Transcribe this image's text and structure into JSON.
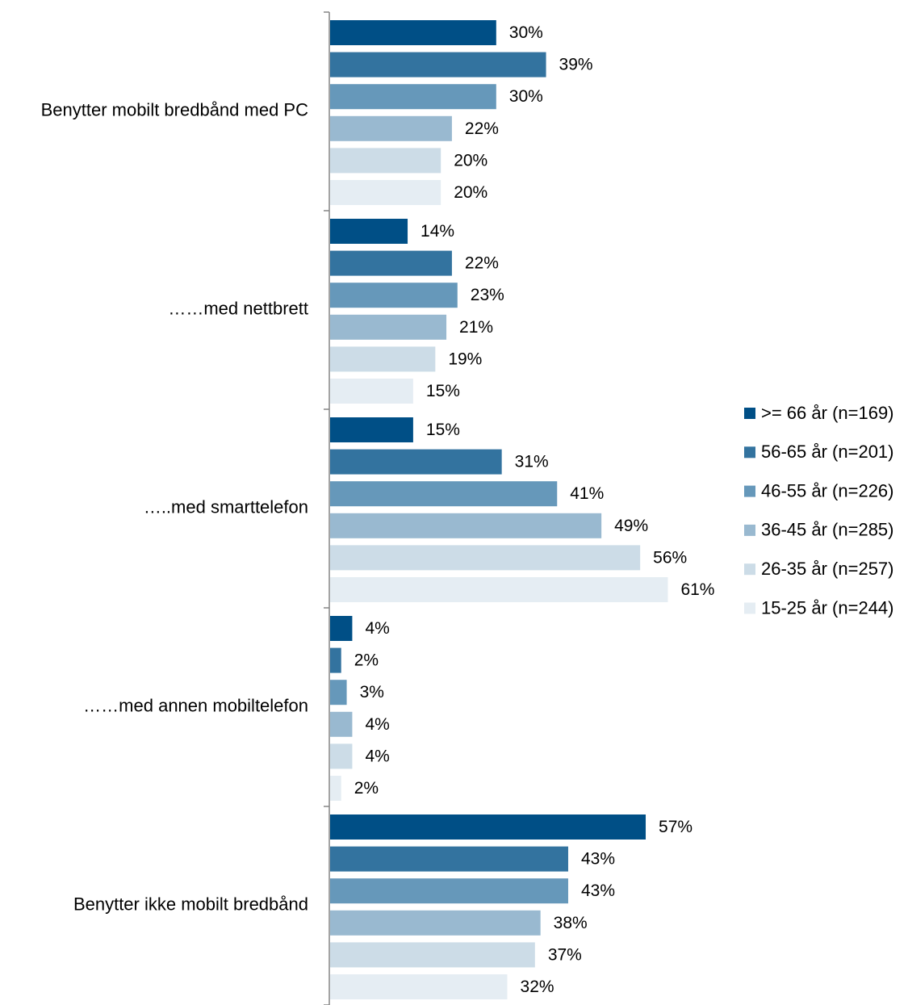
{
  "chart_data": {
    "type": "bar",
    "orientation": "horizontal",
    "categories": [
      "Benytter mobilt bredbånd med PC",
      "……med nettbrett",
      "…..med smarttelefon",
      "……med annen mobiltelefon",
      "Benytter ikke mobilt bredbånd"
    ],
    "series": [
      {
        "name": ">= 66 år (n=169)",
        "values": [
          30,
          14,
          15,
          4,
          57
        ],
        "labels": [
          "30%",
          "14%",
          "15%",
          "4%",
          "57%"
        ],
        "color": "#004f86"
      },
      {
        "name": "56-65 år (n=201)",
        "values": [
          39,
          22,
          31,
          2,
          43
        ],
        "labels": [
          "39%",
          "22%",
          "31%",
          "2%",
          "43%"
        ],
        "color": "#33739f"
      },
      {
        "name": "46-55 år (n=226)",
        "values": [
          30,
          23,
          41,
          3,
          43
        ],
        "labels": [
          "30%",
          "23%",
          "41%",
          "3%",
          "43%"
        ],
        "color": "#6698ba"
      },
      {
        "name": "36-45 år (n=285)",
        "values": [
          22,
          21,
          49,
          4,
          38
        ],
        "labels": [
          "22%",
          "21%",
          "49%",
          "4%",
          "38%"
        ],
        "color": "#99b9d0"
      },
      {
        "name": "26-35 år (n=257)",
        "values": [
          20,
          19,
          56,
          4,
          37
        ],
        "labels": [
          "20%",
          "19%",
          "56%",
          "4%",
          "37%"
        ],
        "color": "#ccdce7"
      },
      {
        "name": "15-25 år (n=244)",
        "values": [
          20,
          15,
          61,
          2,
          32
        ],
        "labels": [
          "20%",
          "15%",
          "61%",
          "2%",
          "32%"
        ],
        "color": "#e5edf3"
      }
    ],
    "xlim": [
      0,
      70
    ],
    "grid": false,
    "legend_position": "right",
    "title": "",
    "xlabel": "",
    "ylabel": ""
  }
}
